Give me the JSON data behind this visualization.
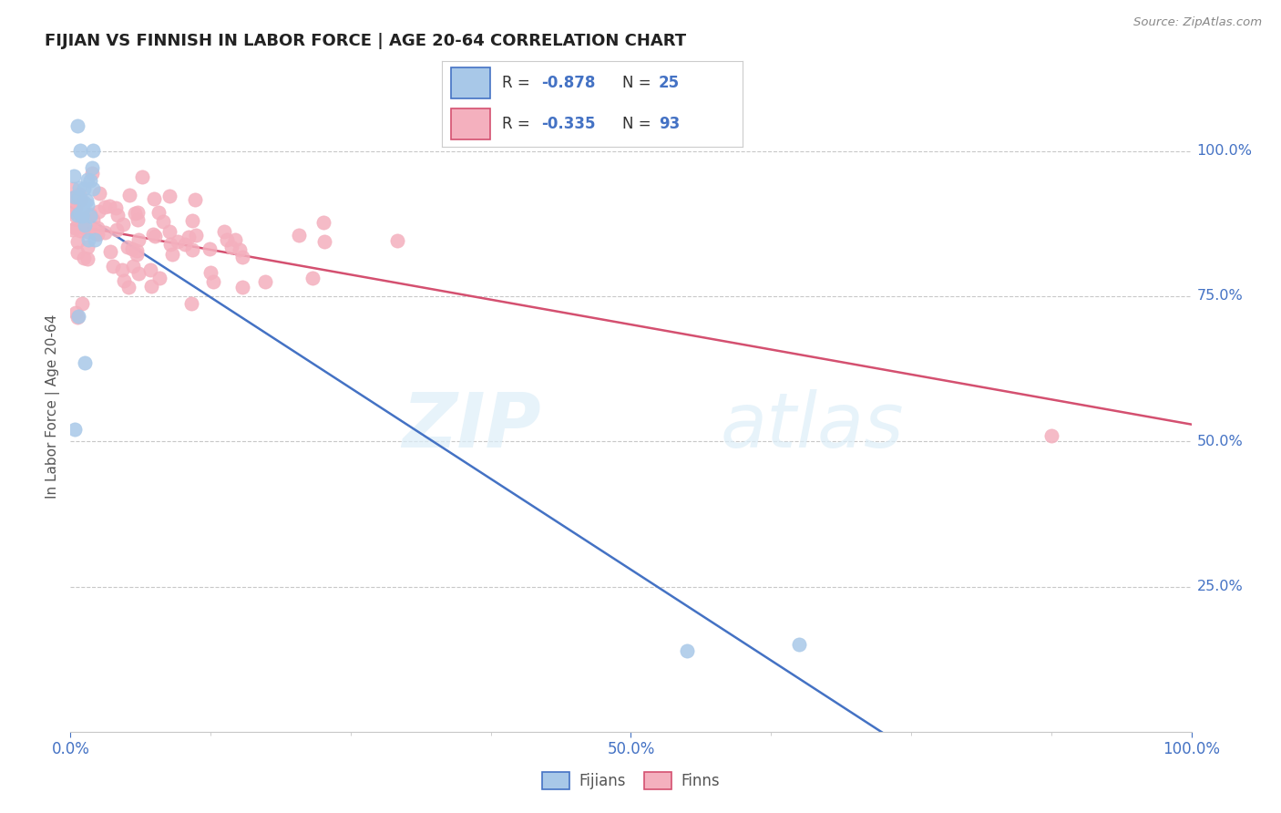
{
  "title": "FIJIAN VS FINNISH IN LABOR FORCE | AGE 20-64 CORRELATION CHART",
  "source": "Source: ZipAtlas.com",
  "ylabel": "In Labor Force | Age 20-64",
  "fijian_color": "#a8c8e8",
  "finn_color": "#f4b0be",
  "fijian_line_color": "#4472c4",
  "finn_line_color": "#d45070",
  "R_fijian": -0.878,
  "N_fijian": 25,
  "R_finn": -0.335,
  "N_finn": 93,
  "watermark_zip": "ZIP",
  "watermark_atlas": "atlas",
  "tick_color": "#4472c4",
  "grid_color": "#c8c8c8",
  "background_color": "#ffffff",
  "title_color": "#222222",
  "axis_label_color": "#555555",
  "source_color": "#888888"
}
